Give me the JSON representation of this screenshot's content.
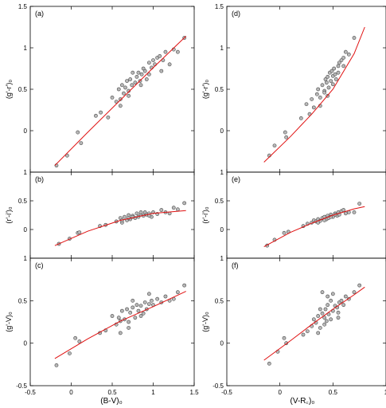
{
  "figure": {
    "left_xlabel": "(B-V)₀",
    "right_xlabel": "(V-R꜀)₀",
    "tick_labels": {
      "x_left": [
        "-0.5",
        "0",
        "0.5",
        "1",
        "1.5"
      ],
      "x_right": [
        "-0.5",
        "0",
        "0.5",
        "1"
      ],
      "y_top": [
        "0",
        "0.5",
        "1",
        "1.5"
      ],
      "y_mid": [
        "0",
        "0.5",
        "1"
      ],
      "y_bottom": [
        "-0.5",
        "0",
        "0.5",
        "1"
      ]
    }
  },
  "chart_data": [
    {
      "panel": "(a)",
      "type": "scatter",
      "ylabel": "(g'-r')₀",
      "xlabel": "",
      "xlim": [
        -0.5,
        1.5
      ],
      "ylim": [
        -0.5,
        1.5
      ],
      "fit": {
        "x": [
          -0.2,
          0.2,
          0.6,
          1.0,
          1.4
        ],
        "y": [
          -0.42,
          -0.02,
          0.37,
          0.76,
          1.14
        ]
      },
      "points": {
        "x": [
          -0.18,
          -0.05,
          0.08,
          0.12,
          0.3,
          0.36,
          0.45,
          0.5,
          0.55,
          0.58,
          0.6,
          0.62,
          0.64,
          0.66,
          0.68,
          0.7,
          0.72,
          0.74,
          0.75,
          0.78,
          0.8,
          0.82,
          0.84,
          0.86,
          0.88,
          0.9,
          0.92,
          0.95,
          0.98,
          1.0,
          1.02,
          1.05,
          1.08,
          1.1,
          1.12,
          1.15,
          1.2,
          1.25,
          1.3,
          1.38,
          0.7,
          0.85,
          0.6,
          0.95
        ],
        "y": [
          -0.42,
          -0.3,
          -0.02,
          -0.15,
          0.18,
          0.22,
          0.16,
          0.4,
          0.35,
          0.5,
          0.38,
          0.55,
          0.45,
          0.52,
          0.6,
          0.48,
          0.62,
          0.55,
          0.7,
          0.58,
          0.65,
          0.7,
          0.6,
          0.68,
          0.75,
          0.72,
          0.62,
          0.82,
          0.76,
          0.85,
          0.8,
          0.88,
          0.9,
          0.72,
          0.85,
          0.95,
          0.8,
          0.98,
          0.95,
          1.12,
          0.42,
          0.55,
          0.3,
          0.68
        ]
      }
    },
    {
      "panel": "(b)",
      "type": "scatter",
      "ylabel": "(r'-i')₀",
      "xlabel": "",
      "xlim": [
        -0.5,
        1.5
      ],
      "ylim": [
        -0.5,
        1.0
      ],
      "fit": {
        "x": [
          -0.2,
          0.2,
          0.6,
          1.0,
          1.4
        ],
        "y": [
          -0.28,
          -0.03,
          0.16,
          0.28,
          0.33
        ]
      },
      "points": {
        "x": [
          -0.15,
          -0.02,
          0.08,
          0.1,
          0.35,
          0.42,
          0.55,
          0.6,
          0.62,
          0.65,
          0.68,
          0.7,
          0.72,
          0.75,
          0.78,
          0.8,
          0.82,
          0.85,
          0.88,
          0.9,
          0.92,
          0.95,
          0.98,
          1.0,
          1.05,
          1.1,
          1.15,
          1.2,
          1.25,
          1.3,
          1.38,
          0.7,
          0.85,
          0.62,
          0.95,
          0.75
        ],
        "y": [
          -0.25,
          -0.16,
          -0.06,
          -0.05,
          0.06,
          0.08,
          0.14,
          0.2,
          0.12,
          0.22,
          0.16,
          0.25,
          0.18,
          0.24,
          0.2,
          0.28,
          0.22,
          0.26,
          0.24,
          0.3,
          0.26,
          0.28,
          0.22,
          0.3,
          0.27,
          0.34,
          0.3,
          0.28,
          0.38,
          0.35,
          0.46,
          0.2,
          0.3,
          0.16,
          0.24,
          0.22
        ]
      }
    },
    {
      "panel": "(c)",
      "type": "scatter",
      "ylabel": "(g'-V)₀",
      "xlabel": "(B-V)₀",
      "xlim": [
        -0.5,
        1.5
      ],
      "ylim": [
        -0.5,
        1.0
      ],
      "fit": {
        "x": [
          -0.2,
          0.2,
          0.6,
          1.0,
          1.4
        ],
        "y": [
          -0.18,
          0.05,
          0.26,
          0.43,
          0.61
        ]
      },
      "points": {
        "x": [
          -0.18,
          -0.02,
          0.05,
          0.1,
          0.35,
          0.42,
          0.5,
          0.55,
          0.58,
          0.6,
          0.62,
          0.65,
          0.68,
          0.7,
          0.72,
          0.75,
          0.78,
          0.8,
          0.82,
          0.85,
          0.88,
          0.9,
          0.92,
          0.95,
          0.98,
          1.0,
          1.05,
          1.1,
          1.15,
          1.2,
          1.25,
          1.3,
          1.38,
          0.7,
          0.85,
          0.6,
          0.75,
          0.95
        ],
        "y": [
          -0.26,
          -0.12,
          0.06,
          0.02,
          0.12,
          0.15,
          0.32,
          0.22,
          0.3,
          0.26,
          0.38,
          0.28,
          0.4,
          0.25,
          0.36,
          0.42,
          0.3,
          0.45,
          0.38,
          0.44,
          0.35,
          0.48,
          0.4,
          0.46,
          0.5,
          0.45,
          0.52,
          0.48,
          0.55,
          0.5,
          0.52,
          0.6,
          0.68,
          0.18,
          0.32,
          0.12,
          0.5,
          0.58
        ]
      }
    },
    {
      "panel": "(d)",
      "type": "scatter",
      "ylabel": "(g'-r')₀",
      "xlabel": "",
      "xlim": [
        -0.5,
        1.0
      ],
      "ylim": [
        -0.5,
        1.5
      ],
      "fit": {
        "x": [
          -0.15,
          0.1,
          0.3,
          0.5,
          0.7,
          0.8
        ],
        "y": [
          -0.38,
          -0.07,
          0.2,
          0.5,
          0.93,
          1.25
        ]
      },
      "points": {
        "x": [
          -0.1,
          -0.05,
          0.05,
          0.06,
          0.2,
          0.25,
          0.28,
          0.3,
          0.32,
          0.35,
          0.36,
          0.38,
          0.4,
          0.42,
          0.43,
          0.44,
          0.45,
          0.46,
          0.47,
          0.48,
          0.49,
          0.5,
          0.51,
          0.52,
          0.53,
          0.55,
          0.56,
          0.58,
          0.6,
          0.62,
          0.65,
          0.7,
          0.45,
          0.5,
          0.38,
          0.55,
          0.42,
          0.6
        ],
        "y": [
          -0.3,
          -0.18,
          -0.02,
          -0.08,
          0.15,
          0.32,
          0.2,
          0.38,
          0.28,
          0.44,
          0.5,
          0.4,
          0.55,
          0.48,
          0.62,
          0.58,
          0.65,
          0.52,
          0.7,
          0.6,
          0.72,
          0.66,
          0.75,
          0.68,
          0.62,
          0.78,
          0.82,
          0.85,
          0.78,
          0.95,
          0.92,
          1.12,
          0.42,
          0.56,
          0.3,
          0.7,
          0.46,
          0.88
        ]
      }
    },
    {
      "panel": "(e)",
      "type": "scatter",
      "ylabel": "(r'-i')₀",
      "xlabel": "",
      "xlim": [
        -0.5,
        1.0
      ],
      "ylim": [
        -0.5,
        1.0
      ],
      "fit": {
        "x": [
          -0.15,
          0.1,
          0.3,
          0.5,
          0.7,
          0.8
        ],
        "y": [
          -0.3,
          -0.05,
          0.11,
          0.25,
          0.36,
          0.4
        ]
      },
      "points": {
        "x": [
          -0.12,
          -0.05,
          0.04,
          0.08,
          0.22,
          0.26,
          0.3,
          0.32,
          0.34,
          0.36,
          0.38,
          0.4,
          0.42,
          0.44,
          0.45,
          0.46,
          0.48,
          0.5,
          0.52,
          0.54,
          0.55,
          0.56,
          0.58,
          0.6,
          0.62,
          0.65,
          0.7,
          0.75,
          0.42,
          0.48,
          0.36,
          0.52
        ],
        "y": [
          -0.28,
          -0.18,
          -0.06,
          -0.04,
          0.06,
          0.1,
          0.12,
          0.16,
          0.14,
          0.18,
          0.15,
          0.2,
          0.22,
          0.18,
          0.24,
          0.2,
          0.26,
          0.22,
          0.28,
          0.24,
          0.3,
          0.26,
          0.32,
          0.34,
          0.28,
          0.3,
          0.3,
          0.45,
          0.16,
          0.22,
          0.12,
          0.26
        ]
      }
    },
    {
      "panel": "(f)",
      "type": "scatter",
      "ylabel": "(g'-V)₀",
      "xlabel": "(V-R꜀)₀",
      "xlim": [
        -0.5,
        1.0
      ],
      "ylim": [
        -0.5,
        1.0
      ],
      "fit": {
        "x": [
          -0.15,
          0.1,
          0.3,
          0.5,
          0.7,
          0.8
        ],
        "y": [
          -0.2,
          0.03,
          0.22,
          0.4,
          0.57,
          0.66
        ]
      },
      "points": {
        "x": [
          -0.1,
          -0.02,
          0.04,
          0.06,
          0.22,
          0.26,
          0.3,
          0.32,
          0.34,
          0.36,
          0.38,
          0.4,
          0.42,
          0.43,
          0.44,
          0.45,
          0.46,
          0.48,
          0.5,
          0.52,
          0.54,
          0.55,
          0.56,
          0.58,
          0.6,
          0.62,
          0.65,
          0.7,
          0.75,
          0.4,
          0.45,
          0.5,
          0.36,
          0.42,
          0.55,
          0.48,
          0.38
        ],
        "y": [
          -0.24,
          -0.1,
          0.06,
          0.0,
          0.1,
          0.14,
          0.2,
          0.28,
          0.24,
          0.32,
          0.18,
          0.35,
          0.3,
          0.4,
          0.26,
          0.45,
          0.34,
          0.5,
          0.38,
          0.44,
          0.42,
          0.36,
          0.48,
          0.5,
          0.45,
          0.55,
          0.52,
          0.6,
          0.68,
          0.6,
          0.55,
          0.58,
          0.12,
          0.22,
          0.3,
          0.28,
          0.4
        ]
      }
    }
  ]
}
